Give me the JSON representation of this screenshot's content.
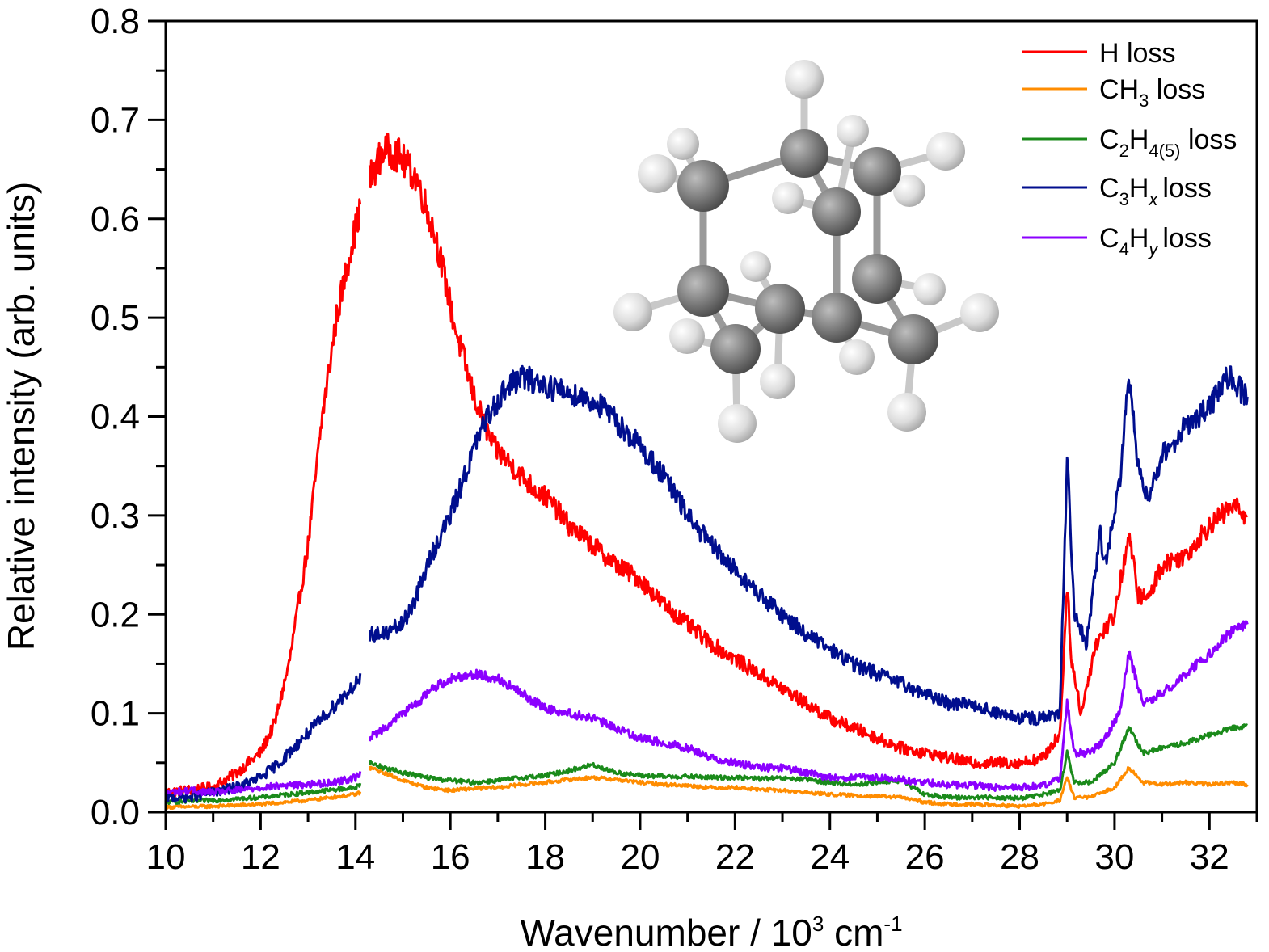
{
  "chart_data": {
    "type": "line",
    "xlabel": "Wavenumber / 10",
    "xlabel_sup": "3",
    "xlabel_unit": " cm",
    "xlabel_unit_sup": "-1",
    "ylabel": "Relative intensity (arb. units)",
    "xlim": [
      10,
      33
    ],
    "ylim": [
      0,
      0.8
    ],
    "x_ticks": [
      "10",
      "12",
      "14",
      "16",
      "18",
      "20",
      "22",
      "24",
      "26",
      "28",
      "30",
      "32"
    ],
    "y_ticks": [
      "0.0",
      "0.1",
      "0.2",
      "0.3",
      "0.4",
      "0.5",
      "0.6",
      "0.7",
      "0.8"
    ],
    "grid": false,
    "legend_position": "top-right",
    "series": [
      {
        "name": "H loss",
        "color": "#ff0000",
        "x": [
          10,
          11,
          11.5,
          12,
          12.3,
          12.6,
          13,
          13.3,
          13.6,
          13.9,
          14.1,
          14.3,
          14.6,
          14.9,
          15.3,
          15.7,
          16.1,
          16.5,
          16.9,
          17.3,
          17.7,
          18.1,
          18.5,
          19,
          19.5,
          20,
          20.5,
          21,
          21.5,
          22,
          22.5,
          23,
          23.5,
          24,
          24.5,
          25,
          25.5,
          26,
          26.5,
          27,
          27.5,
          28,
          28.5,
          28.85,
          29,
          29.1,
          29.3,
          29.6,
          30,
          30.3,
          30.5,
          30.7,
          31,
          31.5,
          32,
          32.5,
          32.8
        ],
        "y": [
          0.02,
          0.025,
          0.04,
          0.06,
          0.09,
          0.15,
          0.27,
          0.4,
          0.5,
          0.57,
          0.61,
          0.64,
          0.67,
          0.665,
          0.64,
          0.58,
          0.49,
          0.42,
          0.37,
          0.35,
          0.33,
          0.315,
          0.29,
          0.27,
          0.25,
          0.235,
          0.21,
          0.19,
          0.17,
          0.155,
          0.14,
          0.125,
          0.11,
          0.095,
          0.085,
          0.075,
          0.065,
          0.06,
          0.055,
          0.05,
          0.05,
          0.05,
          0.055,
          0.08,
          0.23,
          0.15,
          0.1,
          0.17,
          0.2,
          0.28,
          0.22,
          0.215,
          0.25,
          0.26,
          0.29,
          0.31,
          0.3
        ]
      },
      {
        "name": "CH3 loss",
        "color": "#ff8c00",
        "x": [
          10,
          11,
          12,
          13,
          14,
          14.1,
          14.3,
          14.6,
          15,
          15.5,
          16,
          16.5,
          17,
          17.5,
          18,
          18.5,
          19,
          19.5,
          20,
          20.5,
          21,
          21.5,
          22,
          22.5,
          23,
          23.5,
          24,
          24.5,
          25,
          25.5,
          26,
          26.5,
          27,
          27.5,
          28,
          28.5,
          28.85,
          29,
          29.15,
          29.5,
          30,
          30.3,
          30.6,
          31,
          31.5,
          32,
          32.5,
          32.8
        ],
        "y": [
          0.005,
          0.006,
          0.008,
          0.012,
          0.018,
          0.02,
          0.045,
          0.04,
          0.032,
          0.025,
          0.022,
          0.024,
          0.025,
          0.028,
          0.03,
          0.033,
          0.035,
          0.033,
          0.03,
          0.028,
          0.027,
          0.025,
          0.025,
          0.023,
          0.022,
          0.02,
          0.018,
          0.017,
          0.016,
          0.015,
          0.01,
          0.008,
          0.008,
          0.007,
          0.006,
          0.008,
          0.012,
          0.035,
          0.015,
          0.015,
          0.025,
          0.045,
          0.03,
          0.028,
          0.03,
          0.028,
          0.03,
          0.028
        ]
      },
      {
        "name": "C2H4(5) loss",
        "color": "#1a8a1a",
        "x": [
          10,
          11,
          12,
          13,
          14,
          14.1,
          14.3,
          14.6,
          15,
          15.5,
          16,
          16.5,
          17,
          17.5,
          18,
          18.5,
          19,
          19.5,
          20,
          20.5,
          21,
          21.5,
          22,
          22.5,
          23,
          23.5,
          24,
          24.5,
          25,
          25.5,
          26,
          26.5,
          27,
          27.5,
          28,
          28.5,
          28.85,
          29,
          29.15,
          29.5,
          30,
          30.3,
          30.6,
          31,
          31.5,
          32,
          32.5,
          32.8
        ],
        "y": [
          0.01,
          0.012,
          0.015,
          0.02,
          0.025,
          0.028,
          0.05,
          0.045,
          0.04,
          0.035,
          0.032,
          0.03,
          0.032,
          0.035,
          0.037,
          0.042,
          0.048,
          0.04,
          0.037,
          0.036,
          0.036,
          0.035,
          0.035,
          0.034,
          0.034,
          0.033,
          0.03,
          0.028,
          0.03,
          0.032,
          0.018,
          0.015,
          0.015,
          0.015,
          0.014,
          0.018,
          0.022,
          0.06,
          0.03,
          0.03,
          0.05,
          0.085,
          0.06,
          0.065,
          0.07,
          0.078,
          0.085,
          0.088
        ]
      },
      {
        "name": "C3Hx loss",
        "color": "#000e8e",
        "x": [
          10,
          10.5,
          11,
          11.5,
          12,
          12.4,
          12.8,
          13.2,
          13.6,
          14,
          14.1,
          14.3,
          14.6,
          15,
          15.3,
          15.6,
          16,
          16.3,
          16.6,
          16.9,
          17.2,
          17.5,
          17.8,
          18.1,
          18.4,
          18.8,
          19.2,
          19.6,
          20,
          20.5,
          21,
          21.5,
          22,
          22.5,
          23,
          23.5,
          24,
          24.5,
          25,
          25.5,
          26,
          26.5,
          27,
          27.5,
          28,
          28.5,
          28.85,
          29,
          29.15,
          29.4,
          29.7,
          29.8,
          30.1,
          30.3,
          30.5,
          30.7,
          31,
          31.5,
          32,
          32.4,
          32.8
        ],
        "y": [
          0.015,
          0.015,
          0.02,
          0.025,
          0.035,
          0.05,
          0.07,
          0.09,
          0.11,
          0.13,
          0.135,
          0.18,
          0.18,
          0.19,
          0.22,
          0.26,
          0.3,
          0.34,
          0.38,
          0.41,
          0.43,
          0.44,
          0.435,
          0.43,
          0.425,
          0.42,
          0.41,
          0.39,
          0.37,
          0.34,
          0.3,
          0.27,
          0.245,
          0.22,
          0.2,
          0.18,
          0.165,
          0.15,
          0.14,
          0.13,
          0.12,
          0.11,
          0.11,
          0.1,
          0.095,
          0.095,
          0.1,
          0.36,
          0.2,
          0.17,
          0.28,
          0.25,
          0.33,
          0.44,
          0.35,
          0.32,
          0.36,
          0.39,
          0.41,
          0.44,
          0.42
        ]
      },
      {
        "name": "C4Hy loss",
        "color": "#8b00ff",
        "x": [
          10,
          10.5,
          11,
          11.5,
          12,
          12.5,
          13,
          13.5,
          14,
          14.1,
          14.3,
          14.6,
          15,
          15.3,
          15.6,
          16,
          16.5,
          17,
          17.5,
          18,
          18.5,
          19,
          19.5,
          20,
          20.5,
          21,
          21.5,
          22,
          22.5,
          23,
          23.5,
          24,
          24.5,
          25,
          25.5,
          26,
          26.5,
          27,
          27.5,
          28,
          28.5,
          28.85,
          29,
          29.15,
          29.5,
          29.8,
          30.1,
          30.3,
          30.6,
          31,
          31.5,
          32,
          32.4,
          32.8
        ],
        "y": [
          0.02,
          0.022,
          0.02,
          0.022,
          0.025,
          0.027,
          0.028,
          0.03,
          0.035,
          0.038,
          0.075,
          0.085,
          0.1,
          0.11,
          0.125,
          0.135,
          0.14,
          0.135,
          0.12,
          0.105,
          0.1,
          0.095,
          0.085,
          0.075,
          0.07,
          0.065,
          0.055,
          0.05,
          0.045,
          0.045,
          0.04,
          0.035,
          0.035,
          0.035,
          0.033,
          0.03,
          0.028,
          0.027,
          0.025,
          0.025,
          0.027,
          0.035,
          0.11,
          0.06,
          0.06,
          0.075,
          0.1,
          0.16,
          0.11,
          0.12,
          0.14,
          0.16,
          0.18,
          0.19
        ]
      }
    ]
  },
  "legend": [
    {
      "base": "H loss",
      "color": "#ff0000"
    },
    {
      "pre": "CH",
      "sub": "3",
      "post": " loss",
      "color": "#ff8c00"
    },
    {
      "pre": "C",
      "sub": "2",
      "mid": "H",
      "sub2": "4(5)",
      "post": " loss",
      "color": "#1a8a1a"
    },
    {
      "pre": "C",
      "sub": "3",
      "mid": "H",
      "sub2": "x",
      "post": "loss",
      "color": "#000e8e"
    },
    {
      "pre": "C",
      "sub": "4",
      "mid": "H",
      "sub2": "y",
      "post": "loss",
      "color": "#8b00ff"
    }
  ]
}
